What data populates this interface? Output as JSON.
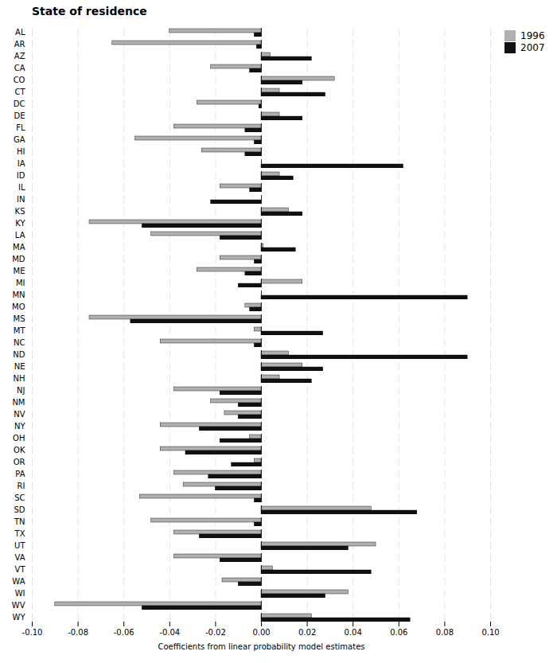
{
  "chart_data": {
    "type": "bar",
    "orientation": "horizontal",
    "title": "State of residence",
    "xlabel": "Coefficients from linear probability model estimates",
    "categories": [
      "AL",
      "AR",
      "AZ",
      "CA",
      "CO",
      "CT",
      "DC",
      "DE",
      "FL",
      "GA",
      "HI",
      "IA",
      "ID",
      "IL",
      "IN",
      "KS",
      "KY",
      "LA",
      "MA",
      "MD",
      "ME",
      "MI",
      "MN",
      "MO",
      "MS",
      "MT",
      "NC",
      "ND",
      "NE",
      "NH",
      "NJ",
      "NM",
      "NV",
      "NY",
      "OH",
      "OK",
      "OR",
      "PA",
      "RI",
      "SC",
      "SD",
      "TN",
      "TX",
      "UT",
      "VA",
      "VT",
      "WA",
      "WI",
      "WV",
      "WY"
    ],
    "series": [
      {
        "name": "1996",
        "color": "#b0b0b0",
        "values": [
          -0.04,
          -0.065,
          0.004,
          -0.022,
          0.032,
          0.008,
          -0.028,
          0.008,
          -0.038,
          -0.055,
          -0.026,
          0.0,
          0.008,
          -0.018,
          0.0,
          0.012,
          -0.075,
          -0.048,
          0.001,
          -0.018,
          -0.028,
          0.018,
          0.0,
          -0.007,
          -0.075,
          -0.003,
          -0.044,
          0.012,
          0.018,
          0.008,
          -0.038,
          -0.022,
          -0.016,
          -0.044,
          -0.005,
          -0.044,
          -0.003,
          -0.038,
          -0.034,
          -0.053,
          0.048,
          -0.048,
          -0.038,
          0.05,
          -0.038,
          0.005,
          -0.017,
          0.038,
          -0.09,
          0.022
        ]
      },
      {
        "name": "2007",
        "color": "#111111",
        "values": [
          -0.003,
          -0.002,
          0.022,
          -0.005,
          0.018,
          0.028,
          -0.001,
          0.018,
          -0.007,
          -0.003,
          -0.007,
          0.062,
          0.014,
          -0.005,
          -0.022,
          0.018,
          -0.052,
          -0.018,
          0.015,
          -0.003,
          -0.007,
          -0.01,
          0.09,
          -0.005,
          -0.057,
          0.027,
          -0.003,
          0.09,
          0.027,
          0.022,
          -0.018,
          -0.01,
          -0.01,
          -0.027,
          -0.018,
          -0.033,
          -0.013,
          -0.023,
          -0.02,
          -0.003,
          0.068,
          -0.003,
          -0.027,
          0.038,
          -0.018,
          0.048,
          -0.01,
          0.028,
          -0.052,
          0.065
        ]
      }
    ],
    "xlim": [
      -0.1,
      0.1
    ],
    "xticks": [
      {
        "value": -0.1,
        "label": "-0.10"
      },
      -0.08,
      -0.06,
      -0.04,
      -0.02,
      {
        "value": 0.0,
        "label": "0.00"
      },
      0.02,
      0.04,
      0.06,
      0.08,
      {
        "value": 0.1,
        "label": "0.10"
      }
    ],
    "grid": true,
    "legend": "upper right"
  }
}
